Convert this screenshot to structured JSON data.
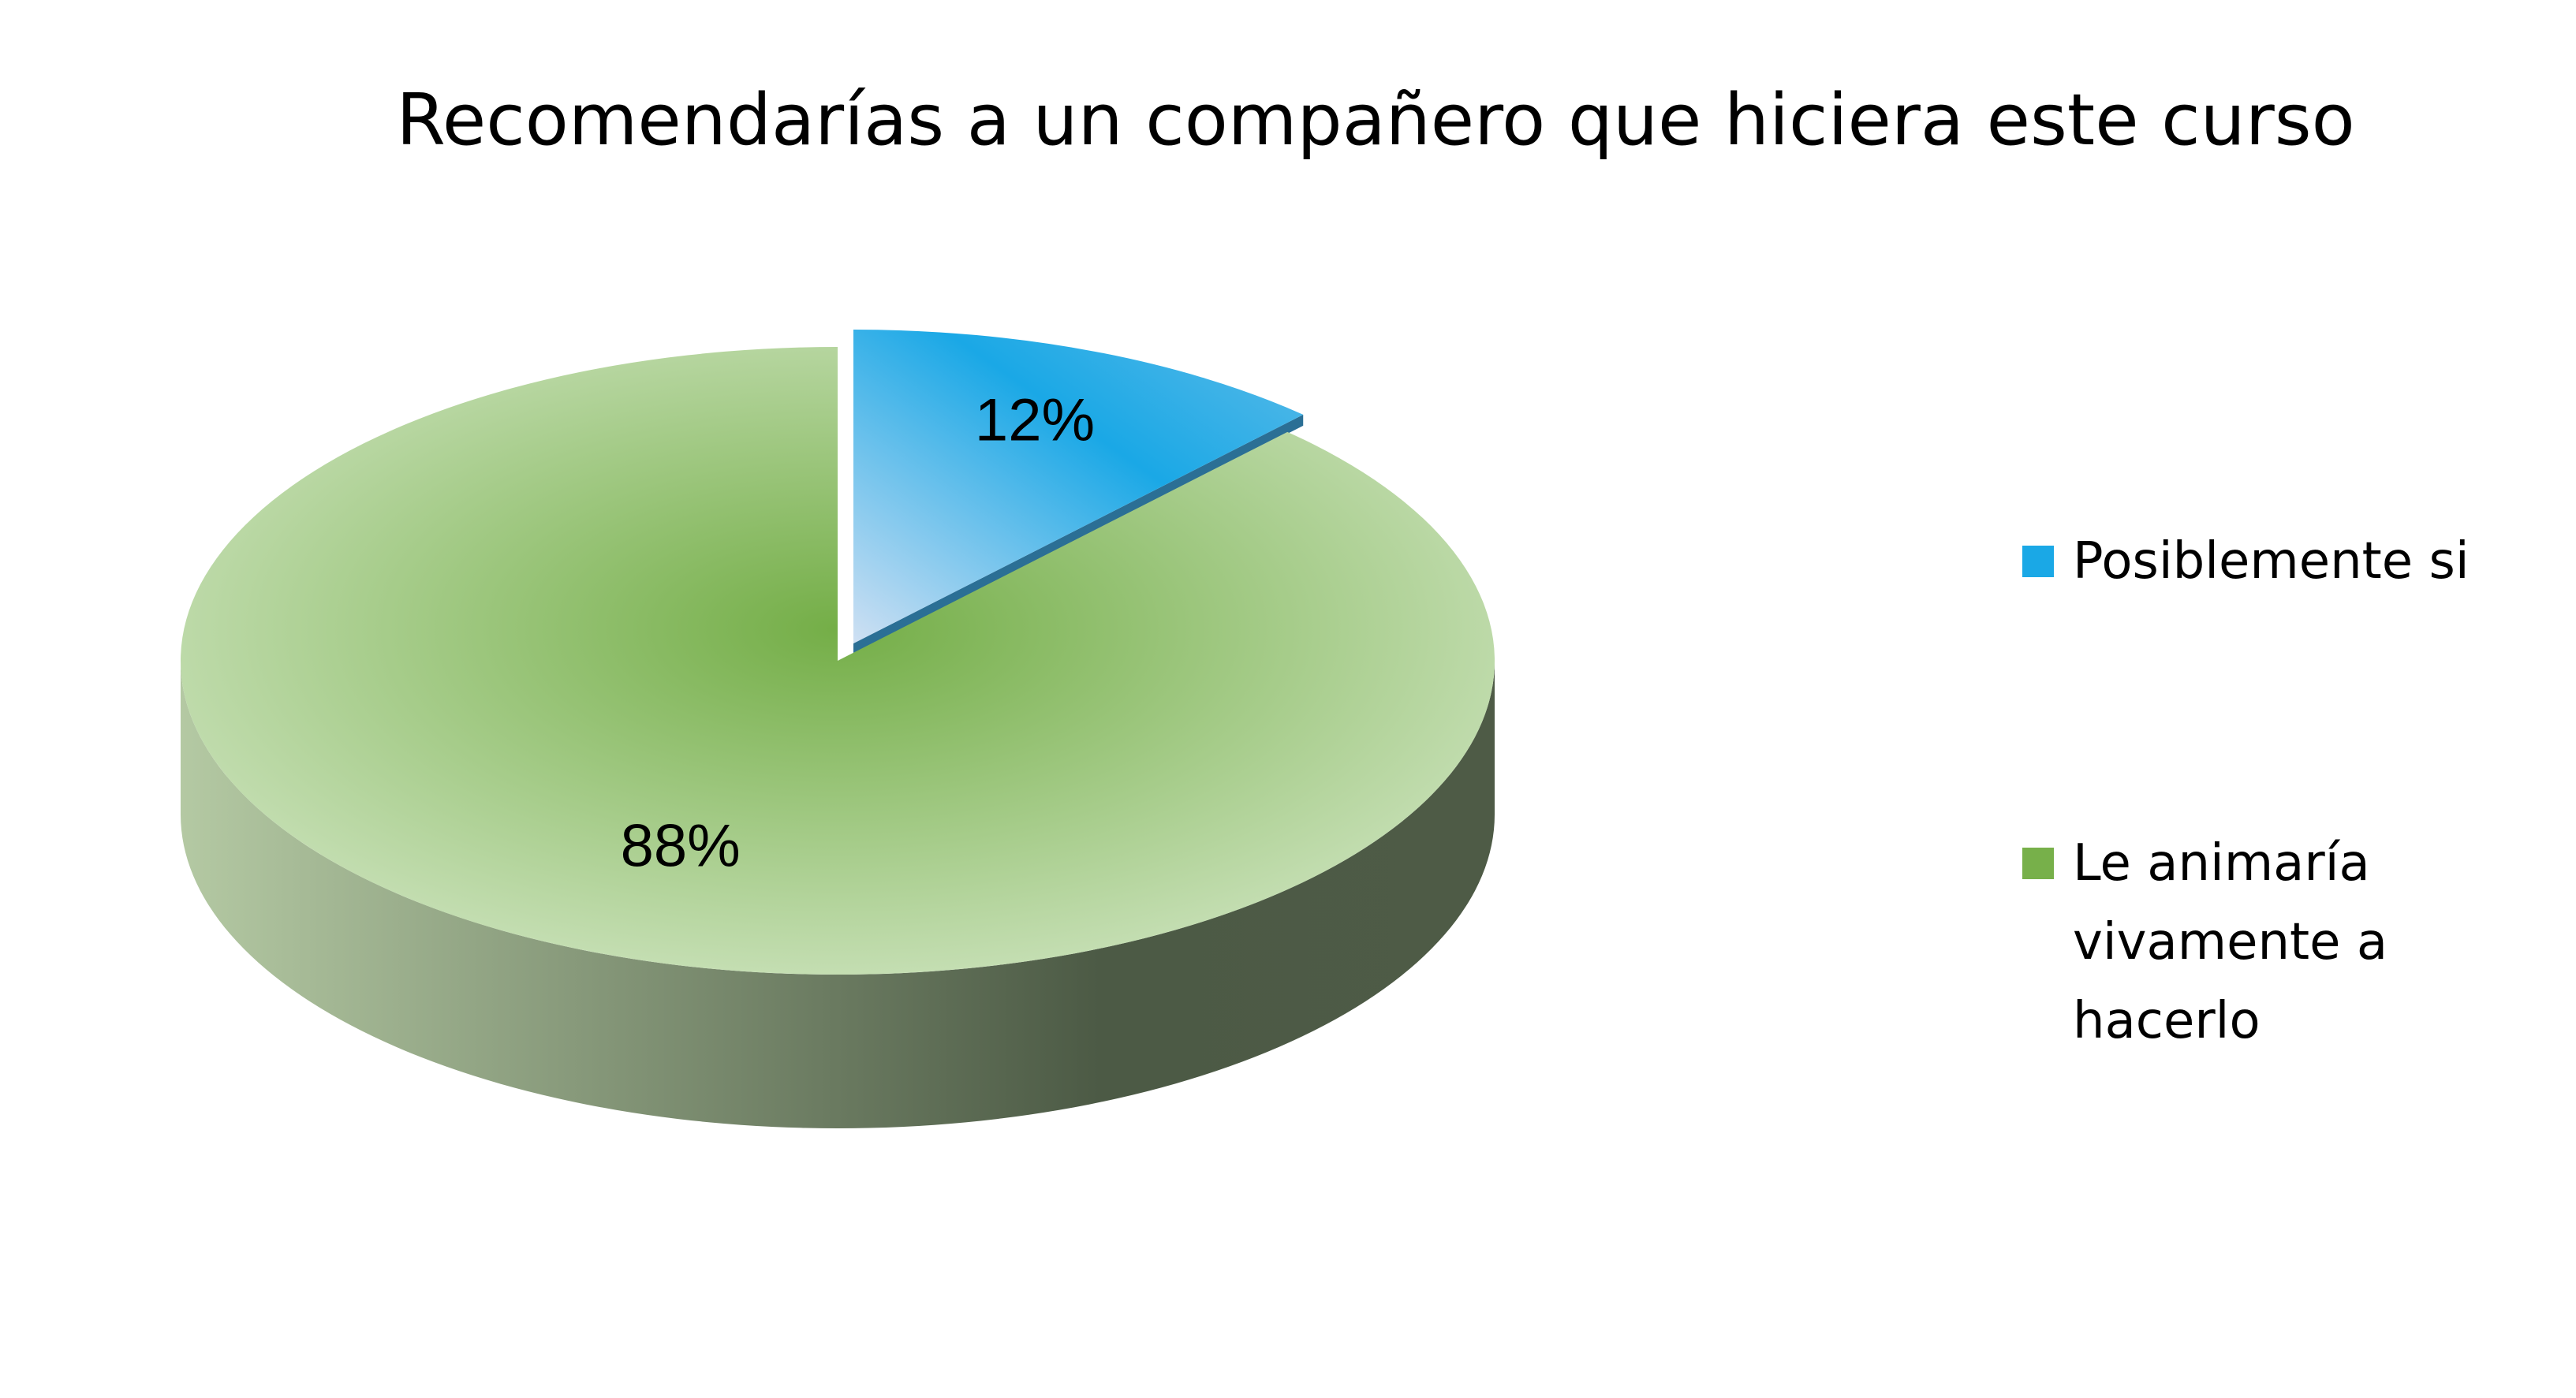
{
  "chart_data": {
    "type": "pie",
    "title": "Recomendarías a un compañero que hiciera este curso",
    "categories": [
      "Posiblemente si",
      "Le animaría vivamente a hacerlo"
    ],
    "values": [
      12,
      88
    ],
    "value_labels": [
      "12%",
      "88%"
    ],
    "colors": [
      "#1aa8e6",
      "#77b04a"
    ],
    "legend": "right"
  }
}
